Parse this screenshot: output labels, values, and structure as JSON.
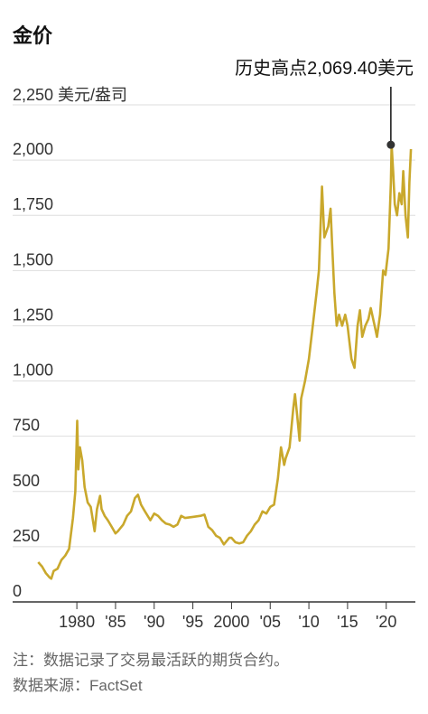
{
  "chart_data": {
    "type": "line",
    "title": "金价",
    "unit_label": "2,250 美元/盎司",
    "y_ticks": [
      {
        "value": 2250,
        "label": ""
      },
      {
        "value": 2000,
        "label": "2,000"
      },
      {
        "value": 1750,
        "label": "1,750"
      },
      {
        "value": 1500,
        "label": "1,500"
      },
      {
        "value": 1250,
        "label": "1,250"
      },
      {
        "value": 1000,
        "label": "1,000"
      },
      {
        "value": 750,
        "label": "750"
      },
      {
        "value": 500,
        "label": "500"
      },
      {
        "value": 250,
        "label": "250"
      },
      {
        "value": 0,
        "label": "0"
      }
    ],
    "x_ticks": [
      {
        "value": 1980,
        "label": "1980"
      },
      {
        "value": 1985,
        "label": "'85"
      },
      {
        "value": 1990,
        "label": "'90"
      },
      {
        "value": 1995,
        "label": "'95"
      },
      {
        "value": 2000,
        "label": "2000"
      },
      {
        "value": 2005,
        "label": "'05"
      },
      {
        "value": 2010,
        "label": "'10"
      },
      {
        "value": 2015,
        "label": "'15"
      },
      {
        "value": 2020,
        "label": "'20"
      }
    ],
    "ylim": [
      0,
      2250
    ],
    "xlim": [
      1974.5,
      2023.3
    ],
    "grid": true,
    "line_color": "#c9a82c",
    "series": [
      {
        "x": [
          1975.0,
          1975.5,
          1976.0,
          1976.5,
          1976.7,
          1977.0,
          1977.5,
          1978.0,
          1978.5,
          1979.0,
          1979.5,
          1979.8,
          1980.05,
          1980.2,
          1980.4,
          1980.7,
          1981.0,
          1981.4,
          1981.8,
          1982.3,
          1982.6,
          1983.0,
          1983.2,
          1983.6,
          1984.0,
          1984.5,
          1985.0,
          1985.3,
          1986.0,
          1986.5,
          1987.0,
          1987.5,
          1987.9,
          1988.3,
          1988.8,
          1989.5,
          1990.0,
          1990.5,
          1991.0,
          1991.5,
          1992.0,
          1992.5,
          1993.0,
          1993.5,
          1994.0,
          1995.0,
          1996.0,
          1996.5,
          1997.0,
          1997.5,
          1998.0,
          1998.5,
          1999.0,
          1999.7,
          2000.0,
          2000.5,
          2001.0,
          2001.5,
          2002.0,
          2002.5,
          2003.0,
          2003.5,
          2004.0,
          2004.5,
          2005.0,
          2005.5,
          2006.0,
          2006.4,
          2006.8,
          2007.0,
          2007.5,
          2008.0,
          2008.2,
          2008.5,
          2008.8,
          2009.0,
          2009.5,
          2010.0,
          2010.5,
          2011.0,
          2011.3,
          2011.7,
          2012.0,
          2012.5,
          2012.8,
          2013.0,
          2013.3,
          2013.6,
          2013.9,
          2014.3,
          2014.7,
          2015.0,
          2015.5,
          2015.9,
          2016.3,
          2016.6,
          2016.9,
          2017.3,
          2017.7,
          2018.0,
          2018.5,
          2018.8,
          2019.2,
          2019.6,
          2019.9,
          2020.3,
          2020.6,
          2020.7,
          2020.9,
          2021.1,
          2021.4,
          2021.7,
          2022.0,
          2022.2,
          2022.5,
          2022.8,
          2023.0,
          2023.2
        ],
        "y": [
          180,
          160,
          130,
          110,
          105,
          140,
          150,
          190,
          210,
          240,
          380,
          500,
          820,
          600,
          700,
          640,
          520,
          450,
          430,
          320,
          420,
          480,
          420,
          390,
          370,
          340,
          310,
          320,
          350,
          390,
          410,
          470,
          485,
          440,
          410,
          370,
          400,
          390,
          370,
          355,
          350,
          340,
          350,
          390,
          380,
          385,
          390,
          395,
          340,
          325,
          300,
          290,
          260,
          290,
          290,
          270,
          265,
          270,
          300,
          320,
          350,
          370,
          410,
          400,
          430,
          440,
          560,
          700,
          620,
          650,
          700,
          880,
          940,
          840,
          730,
          920,
          1000,
          1100,
          1250,
          1400,
          1500,
          1880,
          1650,
          1700,
          1780,
          1620,
          1400,
          1250,
          1300,
          1250,
          1300,
          1250,
          1100,
          1060,
          1250,
          1320,
          1200,
          1250,
          1280,
          1330,
          1250,
          1200,
          1300,
          1500,
          1480,
          1600,
          1900,
          2069.4,
          1950,
          1800,
          1750,
          1850,
          1800,
          1950,
          1750,
          1650,
          1900,
          2050
        ]
      }
    ],
    "peak": {
      "x": 2020.6,
      "y": 2069.4,
      "label": "历史高点2,069.40美元"
    },
    "note": "注：数据记录了交易最活跃的期货合约。",
    "source": "数据来源：FactSet"
  }
}
